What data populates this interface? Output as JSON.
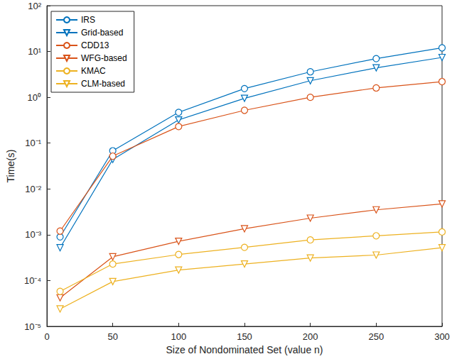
{
  "chart_data": {
    "type": "line",
    "x_label": "Size of Nondominated Set (value n)",
    "y_label": "Time(s)",
    "log": "y",
    "grid": false,
    "legend": "upper left",
    "xlim": [
      0,
      300
    ],
    "xticks": [
      0,
      50,
      100,
      150,
      200,
      250,
      300
    ],
    "ylim": [
      1e-05,
      100
    ],
    "yticks": [
      {
        "value": 1e-05,
        "label": "10⁻⁵"
      },
      {
        "value": 0.0001,
        "label": "10⁻⁴"
      },
      {
        "value": 0.001,
        "label": "10⁻³"
      },
      {
        "value": 0.01,
        "label": "10⁻²"
      },
      {
        "value": 0.1,
        "label": "10⁻¹"
      },
      {
        "value": 1,
        "label": "10⁰"
      },
      {
        "value": 10,
        "label": "10¹"
      },
      {
        "value": 100,
        "label": "10²"
      }
    ],
    "x": [
      10,
      50,
      100,
      150,
      200,
      250,
      300
    ],
    "series": [
      {
        "name": "IRS",
        "color": "#0072BD",
        "marker": "circle",
        "values": [
          0.0009,
          0.068,
          0.47,
          1.55,
          3.6,
          7.0,
          12
        ]
      },
      {
        "name": "Grid-based",
        "color": "#0072BD",
        "marker": "triangle-down",
        "values": [
          0.00052,
          0.044,
          0.32,
          0.95,
          2.3,
          4.4,
          7.4
        ]
      },
      {
        "name": "CDD13",
        "color": "#D95319",
        "marker": "circle",
        "values": [
          0.0012,
          0.052,
          0.23,
          0.52,
          1.0,
          1.6,
          2.2
        ]
      },
      {
        "name": "WFG-based",
        "color": "#D95319",
        "marker": "triangle-down",
        "values": [
          4.2e-05,
          0.00033,
          0.00072,
          0.00135,
          0.0023,
          0.0035,
          0.0047
        ]
      },
      {
        "name": "KMAC",
        "color": "#EDB120",
        "marker": "circle",
        "values": [
          5.8e-05,
          0.00023,
          0.00037,
          0.00053,
          0.00077,
          0.00095,
          0.00115
        ]
      },
      {
        "name": "CLM-based",
        "color": "#EDB120",
        "marker": "triangle-down",
        "values": [
          2.4e-05,
          9.5e-05,
          0.00017,
          0.00023,
          0.00031,
          0.00036,
          0.00052
        ]
      }
    ]
  }
}
